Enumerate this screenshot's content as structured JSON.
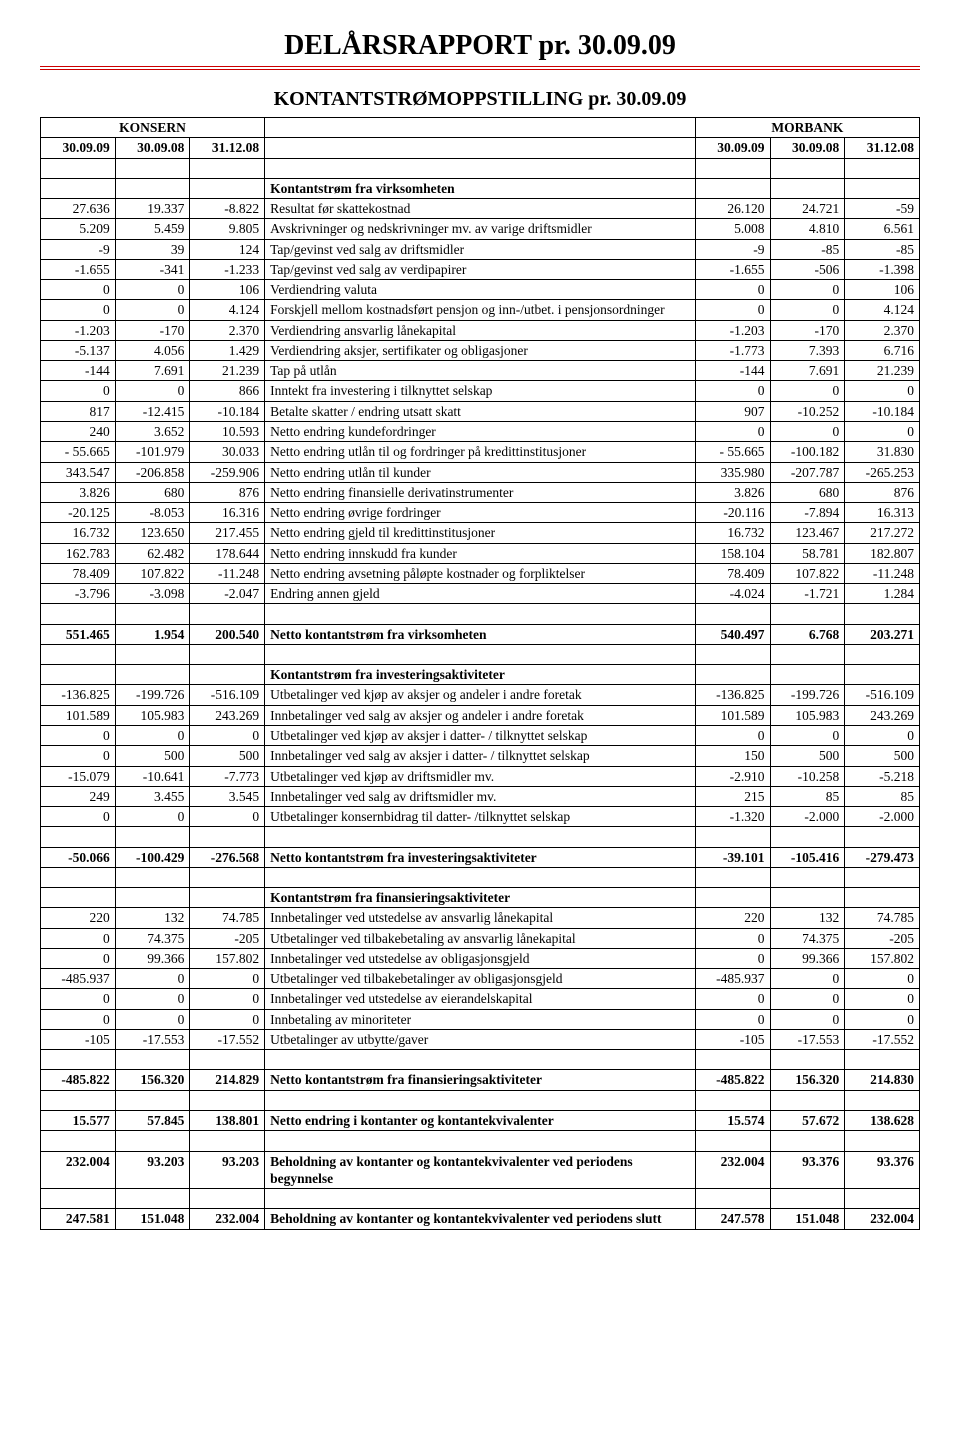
{
  "title": "DELÅRSRAPPORT  pr. 30.09.09",
  "subtitle": "KONTANTSTRØMOPPSTILLING pr. 30.09.09",
  "group_left": "KONSERN",
  "group_right": "MORBANK",
  "cols_left": [
    "30.09.09",
    "30.09.08",
    "31.12.08"
  ],
  "cols_right": [
    "30.09.09",
    "30.09.08",
    "31.12.08"
  ],
  "colors": {
    "rule": "#cc0000",
    "border": "#000000",
    "text": "#000000",
    "bg": "#ffffff"
  },
  "fonts": {
    "body": "Times New Roman",
    "title_pt": 28,
    "sub_pt": 20,
    "cell_pt": 13.5
  },
  "sec1": {
    "heading": "Kontantstrøm fra virksomheten",
    "rows": [
      {
        "l": [
          "27.636",
          "19.337",
          "-8.822"
        ],
        "d": "Resultat før skattekostnad",
        "r": [
          "26.120",
          "24.721",
          "-59"
        ]
      },
      {
        "l": [
          "5.209",
          "5.459",
          "9.805"
        ],
        "d": "Avskrivninger og nedskrivninger mv. av varige driftsmidler",
        "r": [
          "5.008",
          "4.810",
          "6.561"
        ]
      },
      {
        "l": [
          "-9",
          "39",
          "124"
        ],
        "d": "Tap/gevinst ved salg av driftsmidler",
        "r": [
          "-9",
          "-85",
          "-85"
        ]
      },
      {
        "l": [
          "-1.655",
          "-341",
          "-1.233"
        ],
        "d": "Tap/gevinst ved salg av verdipapirer",
        "r": [
          "-1.655",
          "-506",
          "-1.398"
        ]
      },
      {
        "l": [
          "0",
          "0",
          "106"
        ],
        "d": "Verdiendring valuta",
        "r": [
          "0",
          "0",
          "106"
        ]
      },
      {
        "l": [
          "0",
          "0",
          "4.124"
        ],
        "d": "Forskjell mellom kostnadsført pensjon og inn-/utbet. i pensjonsordninger",
        "r": [
          "0",
          "0",
          "4.124"
        ]
      },
      {
        "l": [
          "-1.203",
          "-170",
          "2.370"
        ],
        "d": "Verdiendring ansvarlig lånekapital",
        "r": [
          "-1.203",
          "-170",
          "2.370"
        ]
      },
      {
        "l": [
          "-5.137",
          "4.056",
          "1.429"
        ],
        "d": "Verdiendring aksjer, sertifikater og obligasjoner",
        "r": [
          "-1.773",
          "7.393",
          "6.716"
        ]
      },
      {
        "l": [
          "-144",
          "7.691",
          "21.239"
        ],
        "d": "Tap på utlån",
        "r": [
          "-144",
          "7.691",
          "21.239"
        ]
      },
      {
        "l": [
          "0",
          "0",
          "866"
        ],
        "d": "Inntekt fra investering i tilknyttet selskap",
        "r": [
          "0",
          "0",
          "0"
        ]
      },
      {
        "l": [
          "817",
          "-12.415",
          "-10.184"
        ],
        "d": "Betalte skatter / endring utsatt skatt",
        "r": [
          "907",
          "-10.252",
          "-10.184"
        ]
      },
      {
        "l": [
          "240",
          "3.652",
          "10.593"
        ],
        "d": "Netto endring kundefordringer",
        "r": [
          "0",
          "0",
          "0"
        ]
      },
      {
        "l": [
          "- 55.665",
          "-101.979",
          "30.033"
        ],
        "d": "Netto endring utlån til og fordringer på kredittinstitusjoner",
        "r": [
          "- 55.665",
          "-100.182",
          "31.830"
        ]
      },
      {
        "l": [
          "343.547",
          "-206.858",
          "-259.906"
        ],
        "d": "Netto endring utlån til kunder",
        "r": [
          "335.980",
          "-207.787",
          "-265.253"
        ]
      },
      {
        "l": [
          "3.826",
          "680",
          "876"
        ],
        "d": "Netto endring finansielle derivatinstrumenter",
        "r": [
          "3.826",
          "680",
          "876"
        ]
      },
      {
        "l": [
          "-20.125",
          "-8.053",
          "16.316"
        ],
        "d": "Netto endring øvrige fordringer",
        "r": [
          "-20.116",
          "-7.894",
          "16.313"
        ]
      },
      {
        "l": [
          "16.732",
          "123.650",
          "217.455"
        ],
        "d": "Netto endring gjeld til kredittinstitusjoner",
        "r": [
          "16.732",
          "123.467",
          "217.272"
        ]
      },
      {
        "l": [
          "162.783",
          "62.482",
          "178.644"
        ],
        "d": "Netto endring innskudd fra kunder",
        "r": [
          "158.104",
          "58.781",
          "182.807"
        ]
      },
      {
        "l": [
          "78.409",
          "107.822",
          "-11.248"
        ],
        "d": "Netto endring avsetning påløpte kostnader og forpliktelser",
        "r": [
          "78.409",
          "107.822",
          "-11.248"
        ]
      },
      {
        "l": [
          "-3.796",
          "-3.098",
          "-2.047"
        ],
        "d": "Endring annen gjeld",
        "r": [
          "-4.024",
          "-1.721",
          "1.284"
        ]
      }
    ],
    "total": {
      "l": [
        "551.465",
        "1.954",
        "200.540"
      ],
      "d": "Netto kontantstrøm fra virksomheten",
      "r": [
        "540.497",
        "6.768",
        "203.271"
      ]
    }
  },
  "sec2": {
    "heading": "Kontantstrøm fra investeringsaktiviteter",
    "rows": [
      {
        "l": [
          "-136.825",
          "-199.726",
          "-516.109"
        ],
        "d": "Utbetalinger ved kjøp av aksjer og andeler i andre foretak",
        "r": [
          "-136.825",
          "-199.726",
          "-516.109"
        ]
      },
      {
        "l": [
          "101.589",
          "105.983",
          "243.269"
        ],
        "d": "Innbetalinger ved salg av aksjer og andeler i andre foretak",
        "r": [
          "101.589",
          "105.983",
          "243.269"
        ]
      },
      {
        "l": [
          "0",
          "0",
          "0"
        ],
        "d": "Utbetalinger ved kjøp av aksjer i datter- / tilknyttet selskap",
        "r": [
          "0",
          "0",
          "0"
        ]
      },
      {
        "l": [
          "0",
          "500",
          "500"
        ],
        "d": "Innbetalinger ved salg av aksjer i datter- / tilknyttet selskap",
        "r": [
          "150",
          "500",
          "500"
        ]
      },
      {
        "l": [
          "-15.079",
          "-10.641",
          "-7.773"
        ],
        "d": "Utbetalinger ved kjøp av driftsmidler mv.",
        "r": [
          "-2.910",
          "-10.258",
          "-5.218"
        ]
      },
      {
        "l": [
          "249",
          "3.455",
          "3.545"
        ],
        "d": "Innbetalinger ved salg av driftsmidler mv.",
        "r": [
          "215",
          "85",
          "85"
        ]
      },
      {
        "l": [
          "0",
          "0",
          "0"
        ],
        "d": "Utbetalinger konsernbidrag til datter- /tilknyttet selskap",
        "r": [
          "-1.320",
          "-2.000",
          "-2.000"
        ]
      }
    ],
    "total": {
      "l": [
        "-50.066",
        "-100.429",
        "-276.568"
      ],
      "d": "Netto kontantstrøm  fra investeringsaktiviteter",
      "r": [
        "-39.101",
        "-105.416",
        "-279.473"
      ]
    }
  },
  "sec3": {
    "heading": "Kontantstrøm fra finansieringsaktiviteter",
    "rows": [
      {
        "l": [
          "220",
          "132",
          "74.785"
        ],
        "d": "Innbetalinger ved utstedelse av ansvarlig lånekapital",
        "r": [
          "220",
          "132",
          "74.785"
        ]
      },
      {
        "l": [
          "0",
          "74.375",
          "-205"
        ],
        "d": "Utbetalinger ved tilbakebetaling av ansvarlig lånekapital",
        "r": [
          "0",
          "74.375",
          "-205"
        ]
      },
      {
        "l": [
          "0",
          "99.366",
          "157.802"
        ],
        "d": "Innbetalinger ved utstedelse av obligasjonsgjeld",
        "r": [
          "0",
          "99.366",
          "157.802"
        ]
      },
      {
        "l": [
          "-485.937",
          "0",
          "0"
        ],
        "d": "Utbetalinger ved tilbakebetalinger av obligasjonsgjeld",
        "r": [
          "-485.937",
          "0",
          "0"
        ]
      },
      {
        "l": [
          "0",
          "0",
          "0"
        ],
        "d": "Innbetalinger ved utstedelse av eierandelskapital",
        "r": [
          "0",
          "0",
          "0"
        ]
      },
      {
        "l": [
          "0",
          "0",
          "0"
        ],
        "d": "Innbetaling av minoriteter",
        "r": [
          "0",
          "0",
          "0"
        ]
      },
      {
        "l": [
          "-105",
          "-17.553",
          "-17.552"
        ],
        "d": "Utbetalinger av utbytte/gaver",
        "r": [
          "-105",
          "-17.553",
          "-17.552"
        ]
      }
    ],
    "total": {
      "l": [
        "-485.822",
        "156.320",
        "214.829"
      ],
      "d": "Netto kontantstrøm fra finansieringsaktiviteter",
      "r": [
        "-485.822",
        "156.320",
        "214.830"
      ]
    }
  },
  "sec4": {
    "rows": [
      {
        "l": [
          "15.577",
          "57.845",
          "138.801"
        ],
        "d": "Netto endring i kontanter og kontantekvivalenter",
        "r": [
          "15.574",
          "57.672",
          "138.628"
        ],
        "bold": true
      },
      {
        "l": [
          "232.004",
          "93.203",
          "93.203"
        ],
        "d": "Beholdning av kontanter og kontantekvivalenter ved periodens begynnelse",
        "r": [
          "232.004",
          "93.376",
          "93.376"
        ],
        "bold": true
      },
      {
        "l": [
          "247.581",
          "151.048",
          "232.004"
        ],
        "d": "Beholdning av kontanter og kontantekvivalenter ved periodens slutt",
        "r": [
          "247.578",
          "151.048",
          "232.004"
        ],
        "bold": true
      }
    ]
  }
}
